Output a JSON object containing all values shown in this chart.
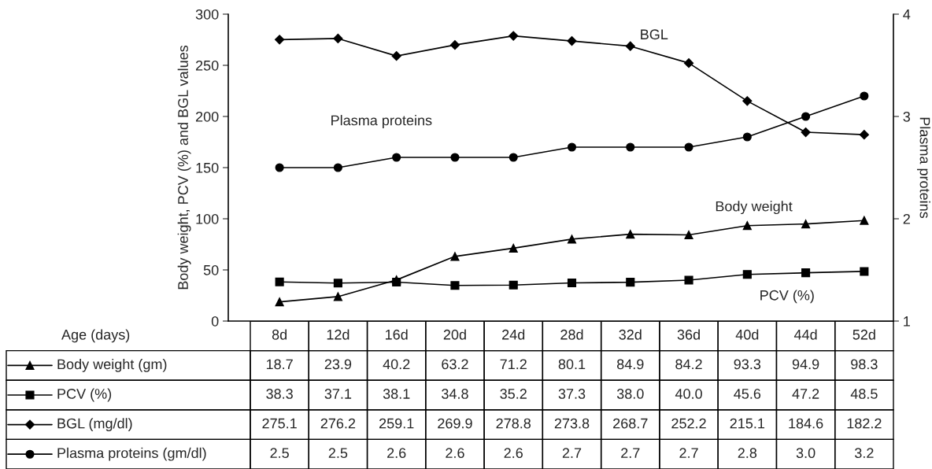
{
  "chart_data": {
    "type": "line",
    "xlabel": "Age (days)",
    "ylabel": "Body weight, PCV (%) and BGL values",
    "y2label": "Plasma proteins",
    "categories": [
      "8d",
      "12d",
      "16d",
      "20d",
      "24d",
      "28d",
      "32d",
      "36d",
      "40d",
      "44d",
      "52d"
    ],
    "ylim": [
      0,
      300
    ],
    "yticks": [
      0,
      50,
      100,
      150,
      200,
      250,
      300
    ],
    "y2lim": [
      1,
      4
    ],
    "y2ticks": [
      1,
      2,
      3,
      4
    ],
    "grid": false,
    "legend": "bottom",
    "line_style": "solid",
    "series": [
      {
        "name": "Body weight (gm)",
        "color": "#000000",
        "marker": "triangle",
        "values": [
          18.7,
          23.9,
          40.2,
          63.2,
          71.2,
          80.1,
          84.9,
          84.2,
          93.3,
          94.9,
          98.3
        ],
        "value_labels": [
          "18.7",
          "23.9",
          "40.2",
          "63.2",
          "71.2",
          "80.1",
          "84.9",
          "84.2",
          "93.3",
          "94.9",
          "98.3"
        ]
      },
      {
        "name": "PCV (%)",
        "color": "#000000",
        "marker": "square",
        "values": [
          38.3,
          37.1,
          38.1,
          34.8,
          35.2,
          37.3,
          38.0,
          40.0,
          45.6,
          47.2,
          48.5
        ],
        "value_labels": [
          "38.3",
          "37.1",
          "38.1",
          "34.8",
          "35.2",
          "37.3",
          "38.0",
          "40.0",
          "45.6",
          "47.2",
          "48.5"
        ]
      },
      {
        "name": "BGL (mg/dl)",
        "color": "#000000",
        "marker": "diamond",
        "values": [
          275.1,
          276.2,
          259.1,
          269.9,
          278.8,
          273.8,
          268.7,
          252.2,
          215.1,
          184.6,
          182.2
        ],
        "value_labels": [
          "275.1",
          "276.2",
          "259.1",
          "269.9",
          "278.8",
          "273.8",
          "268.7",
          "252.2",
          "215.1",
          "184.6",
          "182.2"
        ]
      },
      {
        "name": "Plasma proteins (gm/dl)",
        "color": "#000000",
        "marker": "circle",
        "axis": "y2",
        "values": [
          2.5,
          2.5,
          2.6,
          2.6,
          2.6,
          2.7,
          2.7,
          2.7,
          2.8,
          3.0,
          3.2
        ],
        "value_labels": [
          "2.5",
          "2.5",
          "2.6",
          "2.6",
          "2.6",
          "2.7",
          "2.7",
          "2.7",
          "2.8",
          "3.0",
          "3.2"
        ]
      }
    ],
    "annotations": [
      "BGL",
      "Plasma proteins",
      "Body weight",
      "PCV (%)"
    ]
  }
}
